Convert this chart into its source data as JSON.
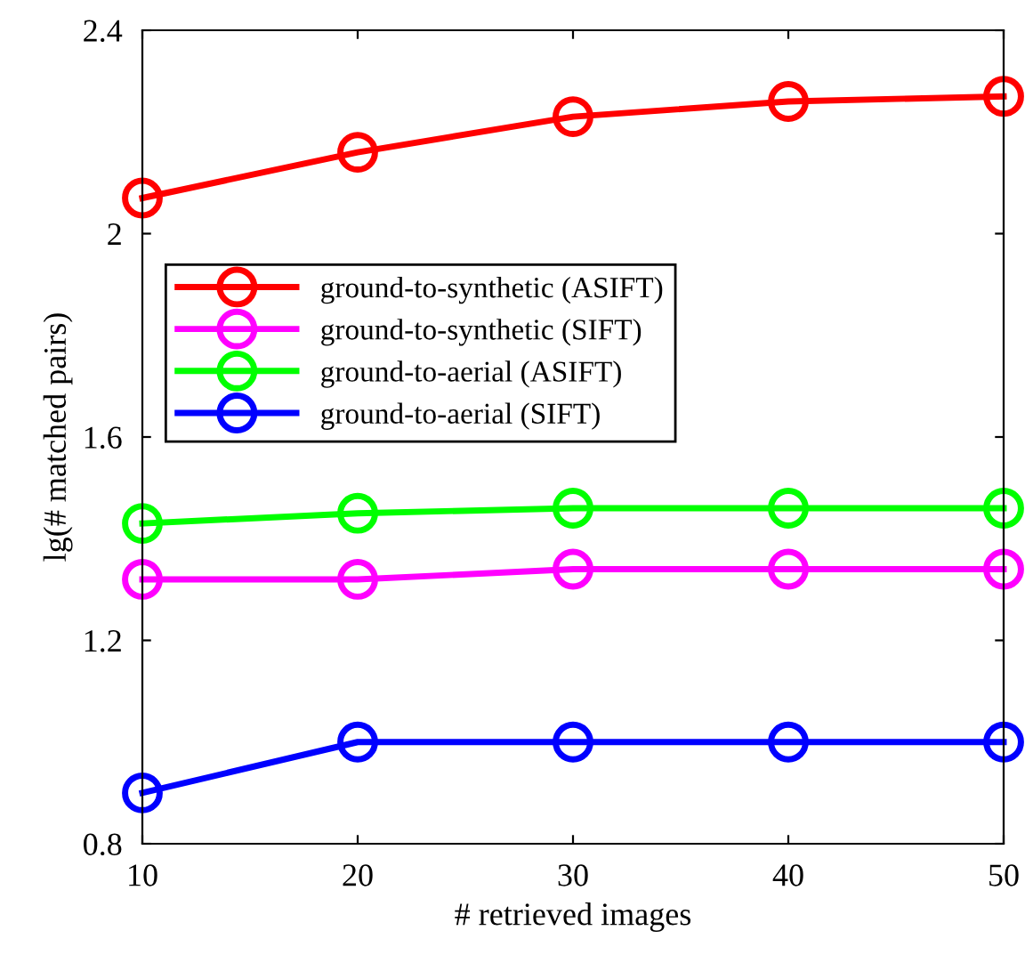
{
  "chart_data": {
    "type": "line",
    "xlabel": "# retrieved images",
    "ylabel": "lg(# matched pairs)",
    "x": [
      10,
      20,
      30,
      40,
      50
    ],
    "series": [
      {
        "name": "ground-to-synthetic (ASIFT)",
        "color": "#ff0000",
        "values": [
          2.07,
          2.16,
          2.23,
          2.26,
          2.27
        ]
      },
      {
        "name": "ground-to-synthetic (SIFT)",
        "color": "#ff00ff",
        "values": [
          1.32,
          1.32,
          1.34,
          1.34,
          1.34
        ]
      },
      {
        "name": "ground-to-aerial (ASIFT)",
        "color": "#00ff00",
        "values": [
          1.43,
          1.45,
          1.46,
          1.46,
          1.46
        ]
      },
      {
        "name": "ground-to-aerial (SIFT)",
        "color": "#0000ff",
        "values": [
          0.9,
          1.0,
          1.0,
          1.0,
          1.0
        ]
      }
    ],
    "xlim": [
      10,
      50
    ],
    "xticks": [
      10,
      20,
      30,
      40,
      50
    ],
    "ylim": [
      0.8,
      2.4
    ],
    "yticks": [
      {
        "value": 0.8,
        "label": "0.8"
      },
      {
        "value": 1.2,
        "label": "1.2"
      },
      {
        "value": 1.6,
        "label": "1.6"
      },
      {
        "value": 2.0,
        "label": "2"
      },
      {
        "value": 2.4,
        "label": "2.4"
      }
    ],
    "grid": false,
    "legend": "top left",
    "marker": "circle",
    "line_style": "solid"
  }
}
